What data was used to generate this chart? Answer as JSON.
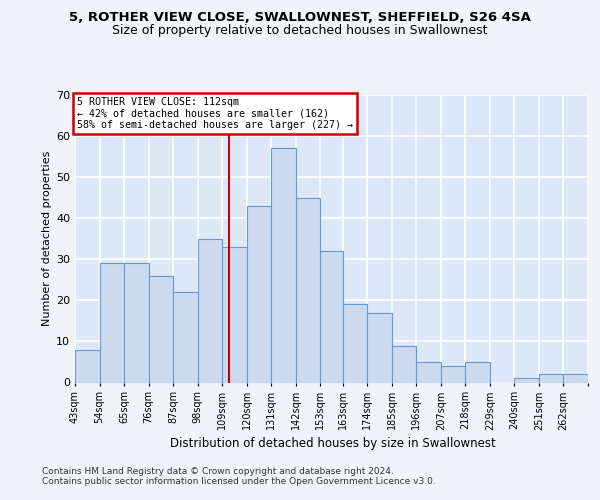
{
  "title_line1": "5, ROTHER VIEW CLOSE, SWALLOWNEST, SHEFFIELD, S26 4SA",
  "title_line2": "Size of property relative to detached houses in Swallownest",
  "xlabel": "Distribution of detached houses by size in Swallownest",
  "ylabel": "Number of detached properties",
  "bar_heights": [
    8,
    29,
    29,
    26,
    22,
    35,
    33,
    43,
    57,
    45,
    32,
    19,
    17,
    9,
    5,
    4,
    5,
    0,
    1,
    2,
    2
  ],
  "bin_lefts": [
    43,
    54,
    65,
    76,
    87,
    98,
    109,
    120,
    131,
    142,
    153,
    163,
    174,
    185,
    196,
    207,
    218,
    229,
    240,
    251,
    262
  ],
  "bin_rights": [
    54,
    65,
    76,
    87,
    98,
    109,
    120,
    131,
    142,
    153,
    163,
    174,
    185,
    196,
    207,
    218,
    229,
    240,
    251,
    262,
    273
  ],
  "bin_labels": [
    "43sqm",
    "54sqm",
    "65sqm",
    "76sqm",
    "87sqm",
    "98sqm",
    "109sqm",
    "120sqm",
    "131sqm",
    "142sqm",
    "153sqm",
    "163sqm",
    "174sqm",
    "185sqm",
    "196sqm",
    "207sqm",
    "218sqm",
    "229sqm",
    "240sqm",
    "251sqm",
    "262sqm"
  ],
  "bar_color": "#ccdaf0",
  "bar_edge_color": "#6699cc",
  "vline_x": 112,
  "vline_color": "#cc0000",
  "annotation_line1": "5 ROTHER VIEW CLOSE: 112sqm",
  "annotation_line2": "← 42% of detached houses are smaller (162)",
  "annotation_line3": "58% of semi-detached houses are larger (227) →",
  "annotation_box_color": "#ffffff",
  "annotation_box_edge": "#cc0000",
  "ylim": [
    0,
    70
  ],
  "yticks": [
    0,
    10,
    20,
    30,
    40,
    50,
    60,
    70
  ],
  "background_color": "#dce8f8",
  "grid_color": "#ffffff",
  "footer_line1": "Contains HM Land Registry data © Crown copyright and database right 2024.",
  "footer_line2": "Contains public sector information licensed under the Open Government Licence v3.0."
}
